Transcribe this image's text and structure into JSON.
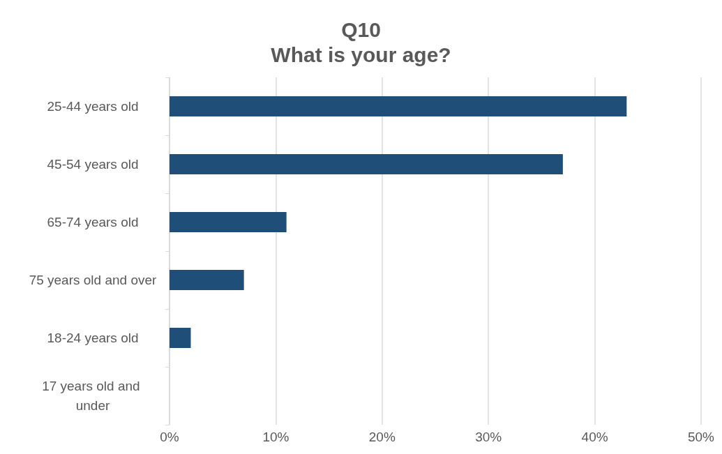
{
  "chart_data": {
    "type": "bar",
    "orientation": "horizontal",
    "title": "Q10",
    "subtitle": "What is your age?",
    "categories": [
      "25-44 years old",
      "45-54 years old",
      "65-74 years old",
      "75 years old and over",
      "18-24 years old",
      "17 years old and under"
    ],
    "values": [
      43,
      37,
      11,
      7,
      2,
      0
    ],
    "color": "#1f4e79",
    "xlim": [
      0,
      50
    ],
    "xticks": [
      {
        "value": 0,
        "label": "0%"
      },
      {
        "value": 10,
        "label": "10%"
      },
      {
        "value": 20,
        "label": "20%"
      },
      {
        "value": 30,
        "label": "30%"
      },
      {
        "value": 40,
        "label": "40%"
      },
      {
        "value": 50,
        "label": "50%"
      }
    ],
    "grid": "x"
  }
}
